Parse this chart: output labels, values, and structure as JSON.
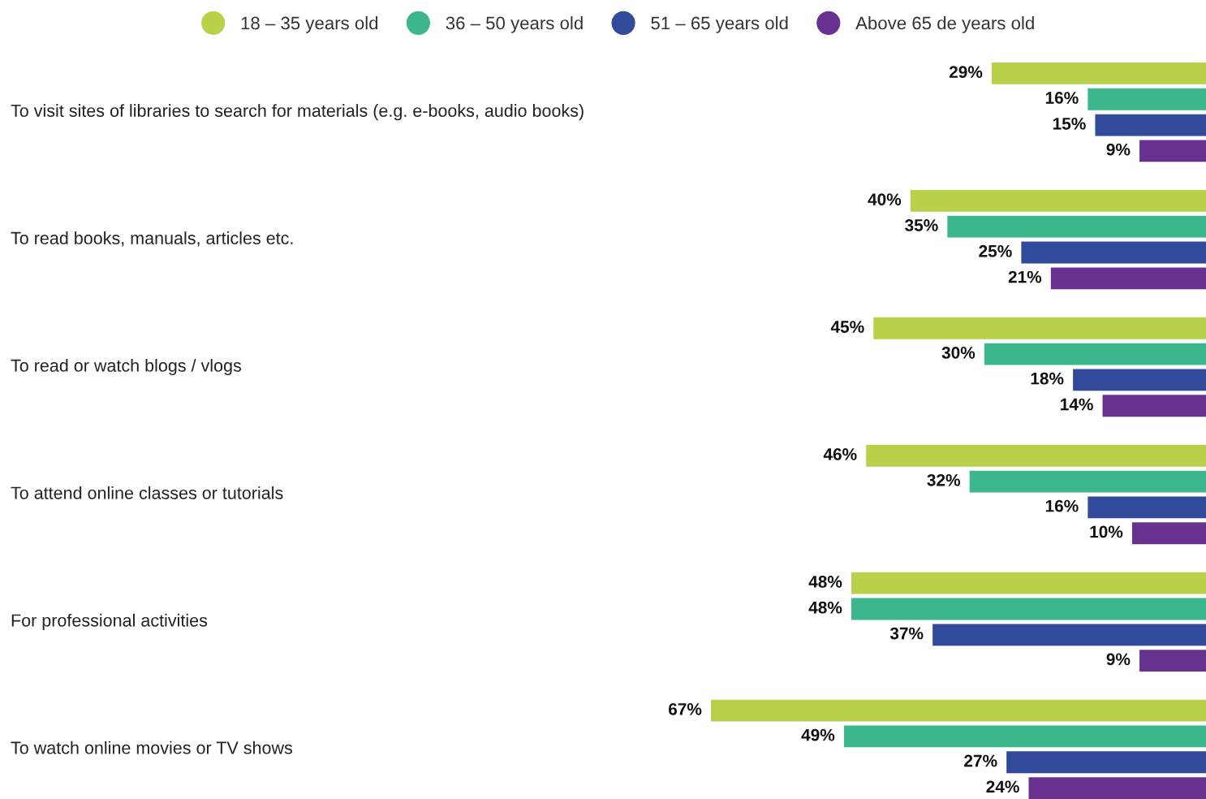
{
  "chart_data": {
    "type": "bar",
    "orientation": "horizontal",
    "legend": "top",
    "categories": [
      "To visit sites of libraries to search for materials (e.g. e-books, audio books)",
      "To read books, manuals, articles etc.",
      "To read or watch blogs / vlogs",
      "To attend online classes or tutorials",
      "For professional activities",
      "To watch online movies or TV shows"
    ],
    "series": [
      {
        "name": "18 – 35 years old",
        "color": "#b8d14a",
        "values": [
          29,
          40,
          45,
          46,
          48,
          67
        ],
        "value_labels": [
          "29%",
          "40%",
          "45%",
          "46%",
          "48%",
          "67%"
        ]
      },
      {
        "name": "36 – 50 years old",
        "color": "#3bb78b",
        "values": [
          16,
          35,
          30,
          32,
          48,
          49
        ],
        "value_labels": [
          "16%",
          "35%",
          "30%",
          "32%",
          "48%",
          "49%"
        ]
      },
      {
        "name": "51 – 65 years old",
        "color": "#314a9a",
        "values": [
          15,
          25,
          18,
          16,
          37,
          27
        ],
        "value_labels": [
          "15%",
          "25%",
          "18%",
          "16%",
          "37%",
          "27%"
        ]
      },
      {
        "name": "Above 65 de years old",
        "color": "#68308f",
        "values": [
          9,
          21,
          14,
          10,
          9,
          24
        ],
        "value_labels": [
          "9%",
          "21%",
          "14%",
          "10%",
          "9%",
          "24%"
        ]
      }
    ]
  }
}
